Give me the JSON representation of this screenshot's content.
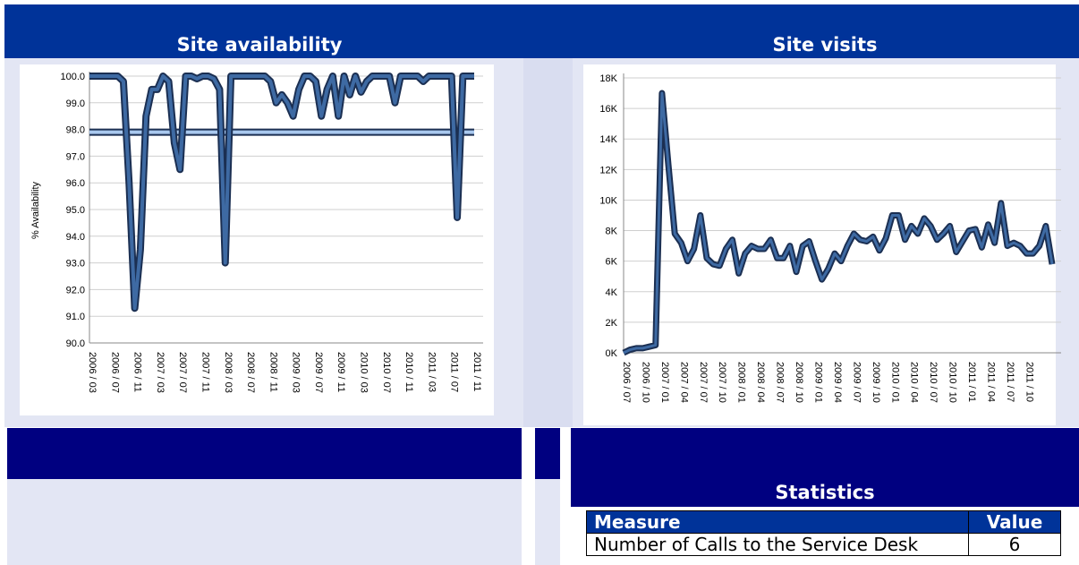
{
  "chart_data": [
    {
      "type": "line",
      "title": "Site availability",
      "y_label": "% Availability",
      "categories": [
        "2006 / 03",
        null,
        null,
        null,
        "2006 / 07",
        null,
        null,
        null,
        "2006 / 11",
        null,
        null,
        null,
        "2007 / 03",
        null,
        null,
        null,
        "2007 / 07",
        null,
        null,
        null,
        "2007 / 11",
        null,
        null,
        null,
        "2008 / 03",
        null,
        null,
        null,
        "2008 / 07",
        null,
        null,
        null,
        "2008 / 11",
        null,
        null,
        null,
        "2009 / 03",
        null,
        null,
        null,
        "2009 / 07",
        null,
        null,
        null,
        "2009 / 11",
        null,
        null,
        null,
        "2010 / 03",
        null,
        null,
        null,
        "2010 / 07",
        null,
        null,
        null,
        "2010 / 11",
        null,
        null,
        null,
        "2011 / 03",
        null,
        null,
        null,
        "2011 / 07",
        null,
        null,
        null,
        "2011 / 11"
      ],
      "series": [
        {
          "color": "#a9c8ee",
          "values": [
            97.9,
            97.9,
            97.9,
            97.9,
            97.9,
            97.9,
            97.9,
            97.9,
            97.9,
            97.9,
            97.9,
            97.9,
            97.9,
            97.9,
            97.9,
            97.9,
            97.9,
            97.9,
            97.9,
            97.9,
            97.9,
            97.9,
            97.9,
            97.9,
            97.9,
            97.9,
            97.9,
            97.9,
            97.9,
            97.9,
            97.9,
            97.9,
            97.9,
            97.9,
            97.9,
            97.9,
            97.9,
            97.9,
            97.9,
            97.9,
            97.9,
            97.9,
            97.9,
            97.9,
            97.9,
            97.9,
            97.9,
            97.9,
            97.9,
            97.9,
            97.9,
            97.9,
            97.9,
            97.9,
            97.9,
            97.9,
            97.9,
            97.9,
            97.9,
            97.9,
            97.9,
            97.9,
            97.9,
            97.9,
            97.9,
            97.9,
            97.9,
            97.9,
            97.9
          ]
        },
        {
          "color": "#3e6aa3",
          "values": [
            100,
            100,
            100,
            100,
            100,
            100,
            99.8,
            96,
            91.3,
            93.5,
            98.5,
            99.5,
            99.5,
            100,
            99.8,
            97.5,
            96.5,
            100,
            100,
            99.9,
            100,
            100,
            99.9,
            99.5,
            93.0,
            100,
            100,
            100,
            100,
            100,
            100,
            100,
            99.8,
            99.0,
            99.3,
            99.0,
            98.5,
            99.5,
            100,
            100,
            99.8,
            98.5,
            99.5,
            100,
            98.5,
            100,
            99.3,
            100,
            99.4,
            99.8,
            100,
            100,
            100,
            100,
            99.0,
            100,
            100,
            100,
            100,
            99.8,
            100,
            100,
            100,
            100,
            100,
            94.7,
            100,
            100,
            100
          ]
        }
      ],
      "ylim": [
        90,
        100
      ],
      "yticks": [
        {
          "value": 90,
          "label": "90.0"
        },
        {
          "value": 91,
          "label": "91.0"
        },
        {
          "value": 92,
          "label": "92.0"
        },
        {
          "value": 93,
          "label": "93.0"
        },
        {
          "value": 94,
          "label": "94.0"
        },
        {
          "value": 95,
          "label": "95.0"
        },
        {
          "value": 96,
          "label": "96.0"
        },
        {
          "value": 97,
          "label": "97.0"
        },
        {
          "value": 98,
          "label": "98.0"
        },
        {
          "value": 99,
          "label": "99.0"
        },
        {
          "value": 100,
          "label": "100.0"
        }
      ],
      "grid": true
    },
    {
      "type": "line",
      "title": "Site visits",
      "categories": [
        "2006 / 07",
        null,
        null,
        "2006 / 10",
        null,
        null,
        "2007 / 01",
        null,
        null,
        "2007 / 04",
        null,
        null,
        "2007 / 07",
        null,
        null,
        "2007 / 10",
        null,
        null,
        "2008 / 01",
        null,
        null,
        "2008 / 04",
        null,
        null,
        "2008 / 07",
        null,
        null,
        "2008 / 10",
        null,
        null,
        "2009 / 01",
        null,
        null,
        "2009 / 04",
        null,
        null,
        "2009 / 07",
        null,
        null,
        "2009 / 10",
        null,
        null,
        "2010 / 01",
        null,
        null,
        "2010 / 04",
        null,
        null,
        "2010 / 07",
        null,
        null,
        "2010 / 10",
        null,
        null,
        "2011 / 01",
        null,
        null,
        "2011 / 04",
        null,
        null,
        "2011 / 07",
        null,
        null,
        "2011 / 10",
        null,
        null,
        null,
        null
      ],
      "series": [
        {
          "color": "#3e6aa3",
          "values": [
            0,
            200,
            300,
            300,
            400,
            500,
            17000,
            12300,
            7800,
            7200,
            6000,
            6800,
            9000,
            6200,
            5800,
            5700,
            6800,
            7400,
            5200,
            6500,
            7000,
            6800,
            6800,
            7400,
            6200,
            6200,
            7000,
            5300,
            7000,
            7300,
            6000,
            4800,
            5500,
            6500,
            6000,
            7000,
            7800,
            7400,
            7300,
            7600,
            6700,
            7500,
            9000,
            9000,
            7400,
            8300,
            7800,
            8800,
            8300,
            7400,
            7800,
            8300,
            6600,
            7300,
            8000,
            8100,
            6900,
            8400,
            7200,
            9800,
            7000,
            7200,
            7000,
            6500,
            6500,
            7000,
            8300,
            5800
          ]
        }
      ],
      "ylim": [
        0,
        18000
      ],
      "yticks": [
        {
          "value": 0,
          "label": "0K"
        },
        {
          "value": 2000,
          "label": "2K"
        },
        {
          "value": 4000,
          "label": "4K"
        },
        {
          "value": 6000,
          "label": "6K"
        },
        {
          "value": 8000,
          "label": "8K"
        },
        {
          "value": 10000,
          "label": "10K"
        },
        {
          "value": 12000,
          "label": "12K"
        },
        {
          "value": 14000,
          "label": "14K"
        },
        {
          "value": 16000,
          "label": "16K"
        },
        {
          "value": 18000,
          "label": "18K"
        }
      ],
      "grid": true
    }
  ],
  "statistics": {
    "title": "Statistics",
    "header": [
      "Measure",
      "Value"
    ],
    "rows": [
      [
        "Number of Calls to the Service Desk",
        "6"
      ]
    ]
  }
}
